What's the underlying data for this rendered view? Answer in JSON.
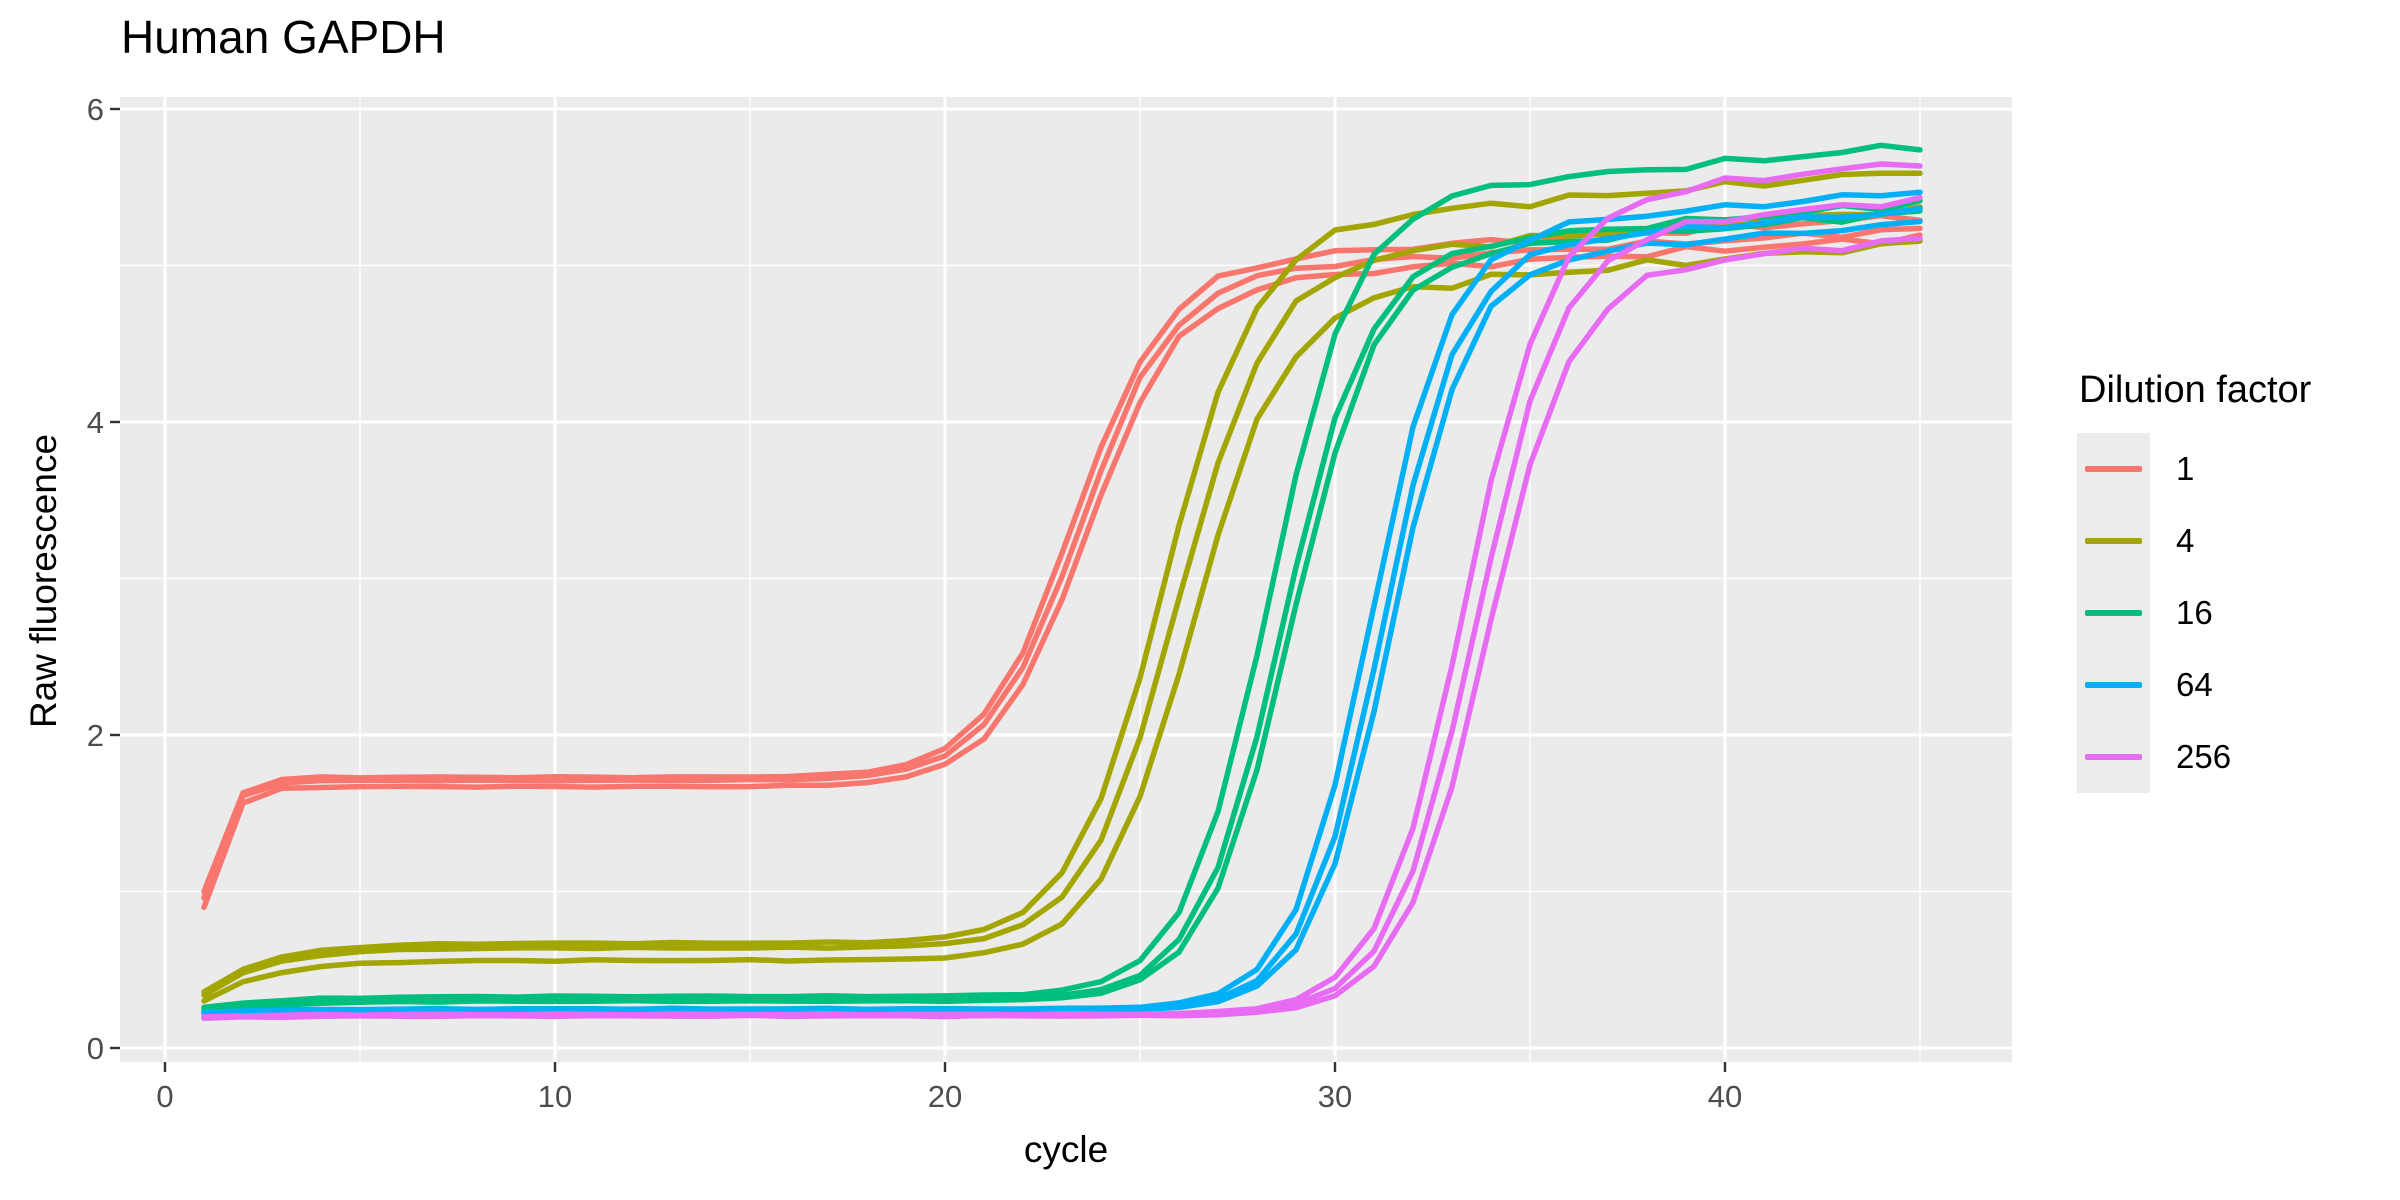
{
  "chart": {
    "title": "Human GAPDH",
    "xlabel": "cycle",
    "ylabel": "Raw fluorescence"
  },
  "legend": {
    "title": "Dilution factor",
    "position": "right",
    "items": [
      {
        "label": "1",
        "color": "#F8766D"
      },
      {
        "label": "4",
        "color": "#A3A500"
      },
      {
        "label": "16",
        "color": "#00BF7C"
      },
      {
        "label": "64",
        "color": "#00B0F6"
      },
      {
        "label": "256",
        "color": "#E76BF3"
      }
    ]
  },
  "chart_data": {
    "type": "line",
    "title": "Human GAPDH",
    "xlabel": "cycle",
    "ylabel": "Raw fluorescence",
    "x_ticks": [
      0,
      10,
      20,
      30,
      40
    ],
    "x_minor_ticks": [
      5,
      15,
      25,
      35,
      45
    ],
    "y_ticks": [
      0,
      2,
      4,
      6
    ],
    "y_minor_ticks": [
      1,
      3,
      5
    ],
    "xlim": [
      -1.2,
      47.2
    ],
    "ylim": [
      -0.09,
      6.06
    ],
    "cycles": {
      "first": 1,
      "last": 45,
      "step": 1
    },
    "grid": "white major and minor gridlines on grey panel",
    "panel_background": "#EBEBEB",
    "legend_position": "right",
    "replicates_per_dilution": 3,
    "model_note": "Each series is sampled at integer cycles 1..45 with y(x) = baseline + (start-baseline)*exp(-(x-1)/settle_tau) + (plateau-baseline)*S + creep*S*(x-midpoint) + noise_amp*(0.6*sin(1.9x+phase)+0.4*sin(3.3x+1.7*phase))*(0.15+0.85*S), where S = 1/(1+exp(-slope*(x-midpoint))). Parameters were read off the plot (baseline level, sigmoid midpoint Ct, rise steepness, final plateau).",
    "series": [
      {
        "name": "dilution-1-rep-1",
        "dilution": "1",
        "color": "#F8766D",
        "start": 1.0,
        "baseline": 1.73,
        "settle_tau": 0.5,
        "plateau": 4.99,
        "midpoint": 23.3,
        "slope": 0.85,
        "creep": 0.015,
        "noise_amp": 0.03,
        "phase": 0.8
      },
      {
        "name": "dilution-1-rep-2",
        "dilution": "1",
        "color": "#F8766D",
        "start": 0.9,
        "baseline": 1.67,
        "settle_tau": 0.5,
        "plateau": 4.86,
        "midpoint": 23.6,
        "slope": 0.85,
        "creep": 0.015,
        "noise_amp": 0.03,
        "phase": 2.7
      },
      {
        "name": "dilution-1-rep-3",
        "dilution": "1",
        "color": "#F8766D",
        "start": 0.96,
        "baseline": 1.71,
        "settle_tau": 0.5,
        "plateau": 4.93,
        "midpoint": 23.45,
        "slope": 0.85,
        "creep": 0.014,
        "noise_amp": 0.024,
        "phase": 4.5
      },
      {
        "name": "dilution-4-rep-1",
        "dilution": "4",
        "color": "#A3A500",
        "start": 0.36,
        "baseline": 0.67,
        "settle_tau": 1.6,
        "plateau": 5.22,
        "midpoint": 25.6,
        "slope": 0.85,
        "creep": 0.02,
        "noise_amp": 0.032,
        "phase": 1.3
      },
      {
        "name": "dilution-4-rep-2",
        "dilution": "4",
        "color": "#A3A500",
        "start": 0.34,
        "baseline": 0.64,
        "settle_tau": 1.6,
        "plateau": 5.0,
        "midpoint": 25.95,
        "slope": 0.85,
        "creep": 0.019,
        "noise_amp": 0.03,
        "phase": 3.2
      },
      {
        "name": "dilution-4-rep-3",
        "dilution": "4",
        "color": "#A3A500",
        "start": 0.3,
        "baseline": 0.56,
        "settle_tau": 1.6,
        "plateau": 4.77,
        "midpoint": 26.3,
        "slope": 0.85,
        "creep": 0.02,
        "noise_amp": 0.036,
        "phase": 5.1
      },
      {
        "name": "dilution-16-rep-1",
        "dilution": "16",
        "color": "#00BF7C",
        "start": 0.26,
        "baseline": 0.33,
        "settle_tau": 2.0,
        "plateau": 5.4,
        "midpoint": 28.3,
        "slope": 0.92,
        "creep": 0.022,
        "noise_amp": 0.03,
        "phase": 0.6
      },
      {
        "name": "dilution-16-rep-2",
        "dilution": "16",
        "color": "#00BF7C",
        "start": 0.25,
        "baseline": 0.31,
        "settle_tau": 2.0,
        "plateau": 5.06,
        "midpoint": 28.65,
        "slope": 0.92,
        "creep": 0.021,
        "noise_amp": 0.028,
        "phase": 2.4
      },
      {
        "name": "dilution-16-rep-3",
        "dilution": "16",
        "color": "#00BF7C",
        "start": 0.24,
        "baseline": 0.3,
        "settle_tau": 2.0,
        "plateau": 5.02,
        "midpoint": 28.85,
        "slope": 0.92,
        "creep": 0.02,
        "noise_amp": 0.028,
        "phase": 4.2
      },
      {
        "name": "dilution-64-rep-1",
        "dilution": "64",
        "color": "#00B0F6",
        "start": 0.23,
        "baseline": 0.25,
        "settle_tau": 2.0,
        "plateau": 5.18,
        "midpoint": 30.9,
        "slope": 1.0,
        "creep": 0.021,
        "noise_amp": 0.028,
        "phase": 1.6
      },
      {
        "name": "dilution-64-rep-2",
        "dilution": "64",
        "color": "#00B0F6",
        "start": 0.225,
        "baseline": 0.245,
        "settle_tau": 2.0,
        "plateau": 5.08,
        "midpoint": 31.2,
        "slope": 1.0,
        "creep": 0.02,
        "noise_amp": 0.026,
        "phase": 3.5
      },
      {
        "name": "dilution-64-rep-3",
        "dilution": "64",
        "color": "#00B0F6",
        "start": 0.22,
        "baseline": 0.24,
        "settle_tau": 2.0,
        "plateau": 5.0,
        "midpoint": 31.4,
        "slope": 1.0,
        "creep": 0.02,
        "noise_amp": 0.026,
        "phase": 5.4
      },
      {
        "name": "dilution-256-rep-1",
        "dilution": "256",
        "color": "#E76BF3",
        "start": 0.2,
        "baseline": 0.215,
        "settle_tau": 2.0,
        "plateau": 5.38,
        "midpoint": 33.3,
        "slope": 0.92,
        "creep": 0.024,
        "noise_amp": 0.03,
        "phase": 1.0
      },
      {
        "name": "dilution-256-rep-2",
        "dilution": "256",
        "color": "#E76BF3",
        "start": 0.195,
        "baseline": 0.21,
        "settle_tau": 2.0,
        "plateau": 5.17,
        "midpoint": 33.6,
        "slope": 0.92,
        "creep": 0.022,
        "noise_amp": 0.028,
        "phase": 2.9
      },
      {
        "name": "dilution-256-rep-3",
        "dilution": "256",
        "color": "#E76BF3",
        "start": 0.19,
        "baseline": 0.205,
        "settle_tau": 2.0,
        "plateau": 4.92,
        "midpoint": 33.85,
        "slope": 0.92,
        "creep": 0.022,
        "noise_amp": 0.03,
        "phase": 4.8
      }
    ]
  },
  "style": {
    "panel_background": "#EBEBEB",
    "gridline_color": "#FFFFFF",
    "tick_label_color": "#4D4D4D",
    "tick_mark_color": "#333333",
    "legend_key_background": "#ECECEC",
    "text_color": "#000000"
  }
}
